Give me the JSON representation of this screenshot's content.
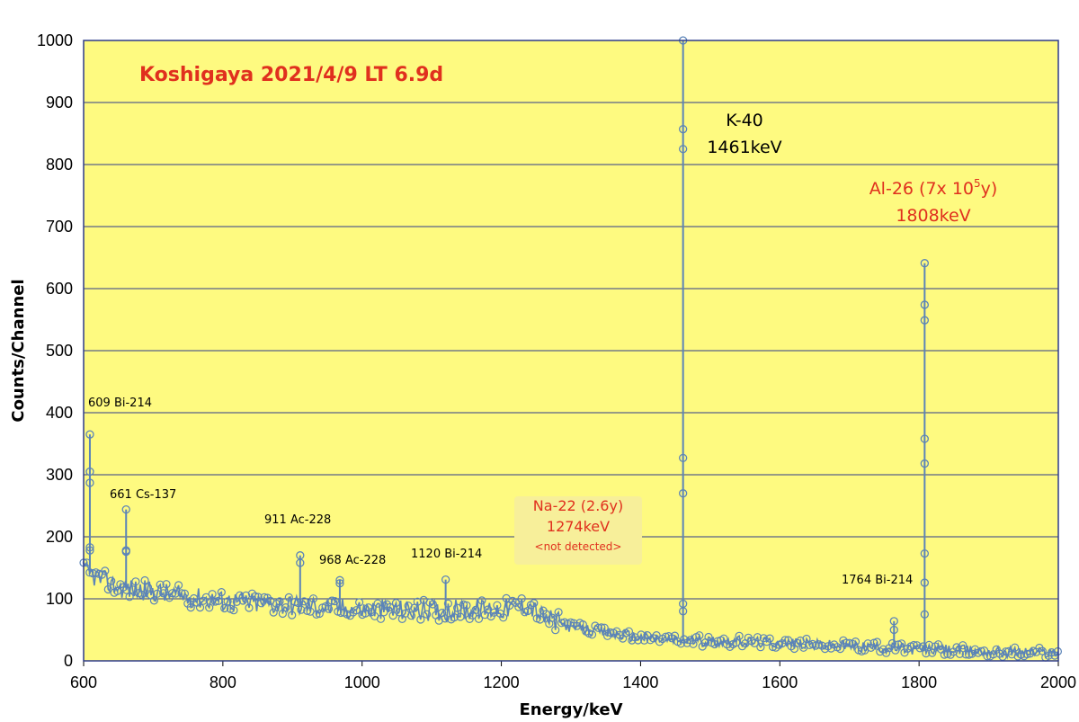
{
  "colors": {
    "plot_bg": "#fefa80",
    "grid": "#2e3b8a",
    "series": "#5b84b8",
    "title_red": "#e0301e",
    "note_bg": "#f7ef9a"
  },
  "chart_data": {
    "type": "line",
    "title": "Koshigaya 2021/4/9 LT 6.9d",
    "xlabel": "Energy/keV",
    "ylabel": "Counts/Channel",
    "xlim": [
      600,
      2000
    ],
    "ylim": [
      0,
      1000
    ],
    "x_ticks": [
      "600",
      "800",
      "1000",
      "1200",
      "1400",
      "1600",
      "1800",
      "2000"
    ],
    "y_ticks": [
      "0",
      "100",
      "200",
      "300",
      "400",
      "500",
      "600",
      "700",
      "800",
      "900",
      "1000"
    ],
    "grid": true,
    "marker": "circle",
    "baseline": [
      [
        600,
        145
      ],
      [
        650,
        118
      ],
      [
        700,
        112
      ],
      [
        750,
        103
      ],
      [
        800,
        97
      ],
      [
        850,
        93
      ],
      [
        900,
        90
      ],
      [
        950,
        87
      ],
      [
        1000,
        83
      ],
      [
        1050,
        82
      ],
      [
        1100,
        81
      ],
      [
        1150,
        82
      ],
      [
        1200,
        84
      ],
      [
        1240,
        90
      ],
      [
        1260,
        70
      ],
      [
        1300,
        55
      ],
      [
        1350,
        45
      ],
      [
        1400,
        38
      ],
      [
        1450,
        33
      ],
      [
        1500,
        32
      ],
      [
        1550,
        31
      ],
      [
        1600,
        29
      ],
      [
        1650,
        26
      ],
      [
        1700,
        24
      ],
      [
        1750,
        21
      ],
      [
        1800,
        19
      ],
      [
        1850,
        17
      ],
      [
        1900,
        15
      ],
      [
        1950,
        14
      ],
      [
        2000,
        13
      ]
    ],
    "peaks": [
      {
        "x": 609,
        "values": [
          365,
          305,
          287,
          183,
          178
        ]
      },
      {
        "x": 661,
        "values": [
          244,
          178,
          176
        ]
      },
      {
        "x": 911,
        "values": [
          170,
          158
        ]
      },
      {
        "x": 968,
        "values": [
          130,
          125
        ]
      },
      {
        "x": 1120,
        "values": [
          131
        ]
      },
      {
        "x": 1461,
        "values": [
          1000,
          857,
          825,
          327,
          270,
          92,
          80
        ]
      },
      {
        "x": 1764,
        "values": [
          64,
          50
        ]
      },
      {
        "x": 1808,
        "values": [
          641,
          574,
          549,
          358,
          318,
          173,
          126,
          75
        ]
      }
    ]
  },
  "annotations": {
    "bi214_609": "609 Bi-214",
    "cs137_661": "661 Cs-137",
    "ac228_911": "911 Ac-228",
    "ac228_968": "968 Ac-228",
    "bi214_1120": "1120 Bi-214",
    "k40_name": "K-40",
    "k40_energy": "1461keV",
    "al26_name": "Al-26 (7x 10",
    "al26_exp": "5",
    "al26_tail": "y)",
    "al26_energy": "1808keV",
    "na22_name": "Na-22 (2.6y)",
    "na22_energy": "1274keV",
    "na22_note": "<not detected>",
    "bi214_1764": "1764 Bi-214"
  }
}
